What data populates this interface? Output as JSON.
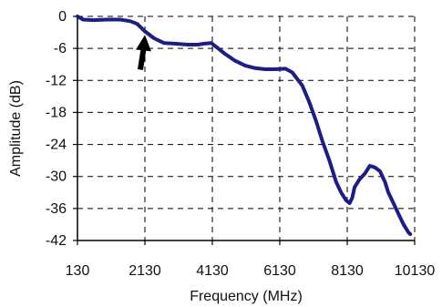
{
  "chart_data": {
    "type": "line",
    "title": "",
    "xlabel": "Frequency (MHz)",
    "ylabel": "Amplitude (dB)",
    "xlim": [
      130,
      10130
    ],
    "ylim": [
      -42,
      0
    ],
    "x_ticks": [
      130,
      2130,
      4130,
      6130,
      8130,
      10130
    ],
    "x_tick_labels": [
      "130",
      "2130",
      "4130",
      "6130",
      "8130",
      "10130"
    ],
    "y_ticks": [
      0,
      -6,
      -12,
      -18,
      -24,
      -30,
      -36,
      -42
    ],
    "y_tick_labels": [
      "0",
      "-6",
      "-12",
      "-18",
      "-24",
      "-30",
      "-36",
      "-42"
    ],
    "grid": "dashed",
    "legend": "none",
    "line_color": "#1c1c8a",
    "series": [
      {
        "x": [
          130,
          300,
          600,
          1000,
          1400,
          1700,
          1900,
          2130,
          2400,
          2700,
          3000,
          3400,
          3700,
          3900,
          4100,
          4300,
          4500,
          4800,
          5100,
          5400,
          5700,
          6000,
          6300,
          6500,
          6800,
          7000,
          7200,
          7400,
          7600,
          7800,
          7950,
          8100,
          8200,
          8280,
          8350,
          8500,
          8650,
          8800,
          8950,
          9100,
          9250,
          9350,
          9500,
          9650,
          9800,
          9950,
          10000
        ],
        "y": [
          0,
          -0.6,
          -0.7,
          -0.6,
          -0.6,
          -0.9,
          -1.4,
          -2.8,
          -4.1,
          -5.0,
          -5.1,
          -5.3,
          -5.3,
          -5.1,
          -5.0,
          -6.0,
          -7.0,
          -8.3,
          -9.2,
          -9.7,
          -9.9,
          -9.9,
          -9.8,
          -10.5,
          -13.0,
          -16.0,
          -19.5,
          -23.5,
          -27.0,
          -31.0,
          -33.0,
          -34.5,
          -35.0,
          -34.0,
          -32.0,
          -30.5,
          -29.5,
          -28.0,
          -28.3,
          -29.0,
          -31.0,
          -33.0,
          -35.0,
          -37.0,
          -39.0,
          -40.5,
          -40.8
        ]
      }
    ],
    "annotations": [
      {
        "type": "arrow",
        "x": 2130,
        "y": -2.8,
        "color": "#000000"
      }
    ]
  }
}
